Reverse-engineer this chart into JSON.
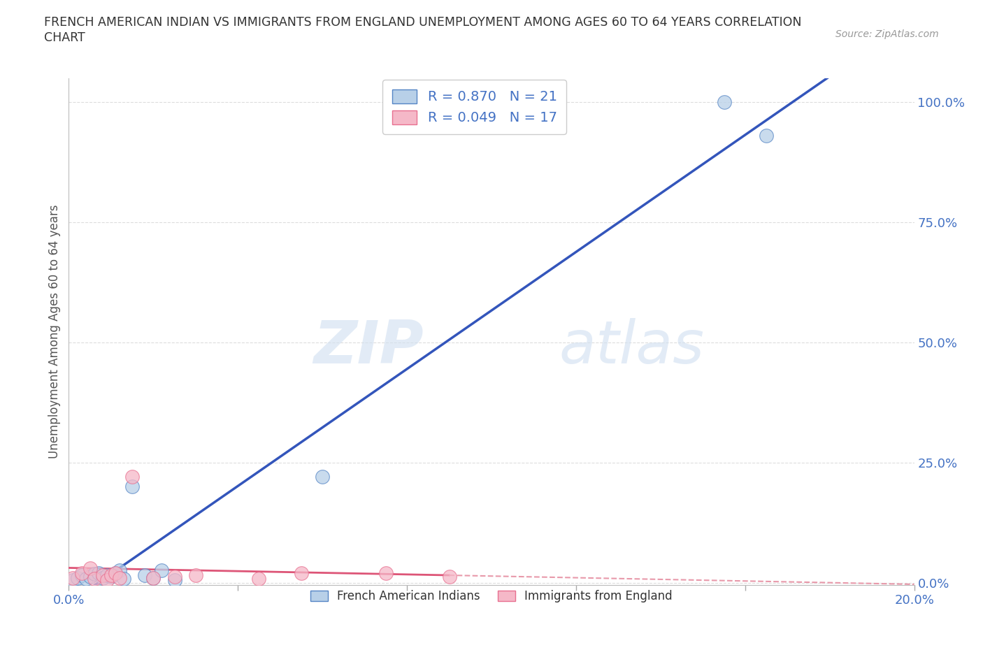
{
  "title_line1": "FRENCH AMERICAN INDIAN VS IMMIGRANTS FROM ENGLAND UNEMPLOYMENT AMONG AGES 60 TO 64 YEARS CORRELATION",
  "title_line2": "CHART",
  "source_text": "Source: ZipAtlas.com",
  "ylabel": "Unemployment Among Ages 60 to 64 years",
  "xlim": [
    0,
    0.2
  ],
  "ylim": [
    -0.005,
    1.05
  ],
  "xticks": [
    0.0,
    0.04,
    0.08,
    0.12,
    0.16,
    0.2
  ],
  "yticks_right": [
    0.0,
    0.25,
    0.5,
    0.75,
    1.0
  ],
  "ytick_right_labels": [
    "0.0%",
    "25.0%",
    "50.0%",
    "75.0%",
    "100.0%"
  ],
  "watermark_zip": "ZIP",
  "watermark_atlas": "atlas",
  "legend_r1": "R = 0.870",
  "legend_n1": "N = 21",
  "legend_r2": "R = 0.049",
  "legend_n2": "N = 17",
  "blue_fill": "#b8d0e8",
  "pink_fill": "#f5b8c8",
  "blue_edge": "#5585c5",
  "pink_edge": "#e87090",
  "blue_line_color": "#3355bb",
  "pink_line_solid_color": "#dd5577",
  "pink_line_dash_color": "#e899aa",
  "title_color": "#333333",
  "axis_label_color": "#555555",
  "right_tick_color": "#4472c4",
  "blue_x": [
    0.001,
    0.002,
    0.003,
    0.004,
    0.005,
    0.006,
    0.007,
    0.008,
    0.009,
    0.01,
    0.011,
    0.012,
    0.013,
    0.015,
    0.018,
    0.02,
    0.022,
    0.025,
    0.06,
    0.155,
    0.165
  ],
  "blue_y": [
    0.005,
    0.01,
    0.015,
    0.008,
    0.012,
    0.018,
    0.02,
    0.01,
    0.015,
    0.012,
    0.02,
    0.025,
    0.008,
    0.2,
    0.015,
    0.01,
    0.025,
    0.005,
    0.22,
    1.0,
    0.93
  ],
  "pink_x": [
    0.001,
    0.003,
    0.005,
    0.006,
    0.008,
    0.009,
    0.01,
    0.011,
    0.012,
    0.015,
    0.02,
    0.025,
    0.03,
    0.045,
    0.055,
    0.075,
    0.09
  ],
  "pink_y": [
    0.01,
    0.02,
    0.03,
    0.008,
    0.015,
    0.005,
    0.015,
    0.02,
    0.01,
    0.22,
    0.01,
    0.012,
    0.015,
    0.008,
    0.02,
    0.02,
    0.012
  ],
  "background_color": "#ffffff",
  "grid_color": "#dddddd"
}
